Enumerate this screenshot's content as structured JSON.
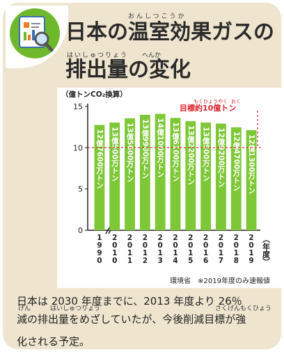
{
  "header": {
    "title_line1": "日本の温室効果ガスの",
    "title_line2": "排出量の変化",
    "ruby_onshitsukouka": "おんしつこうか",
    "ruby_haishutsuryou": "はいしゅつりょう",
    "ruby_henka": "へんか"
  },
  "chart_data": {
    "type": "bar",
    "ylabel": "（億トンCO₂換算）",
    "xlabel": "（年度）",
    "ylim": [
      0,
      15
    ],
    "yticks": [
      0,
      5,
      10,
      15
    ],
    "categories": [
      "1990",
      "2010",
      "2011",
      "2012",
      "2013",
      "2014",
      "2015",
      "2016",
      "2017",
      "2018",
      "2019"
    ],
    "values": [
      12.76,
      13.05,
      13.56,
      13.99,
      14.1,
      13.61,
      13.22,
      13.05,
      12.92,
      12.47,
      12.13
    ],
    "bar_labels": [
      "12億7600万トン",
      "13億500万トン",
      "13億5600万トン",
      "13億9900万トン",
      "14億1000万トン",
      "13億6100万トン",
      "13億2200万トン",
      "13億500万トン",
      "12億9200万トン",
      "12億4700万トン",
      "12億1300万トン"
    ],
    "target_line": {
      "value": 10,
      "label": "目標約10億トン",
      "ruby_mokuhyouyaku": "もくひょうやく",
      "ruby_oku": "おく"
    },
    "source": "環境省　※2019年度のみ速報値",
    "colors": {
      "bar": "#7ec837",
      "target": "#d9232e",
      "axis": "#222222"
    }
  },
  "caption": {
    "line1": "日本は 2030 年度までに、2013 年度より 26％",
    "line2": "減の排出量をめざしていたが、今後削減目標が強",
    "line3": "化される予定。",
    "ruby_gen": "げん",
    "ruby_haishutsuryou": "はいしゅつりょう",
    "ruby_sakugenmokuhyou": "さくげんもくひょう"
  }
}
